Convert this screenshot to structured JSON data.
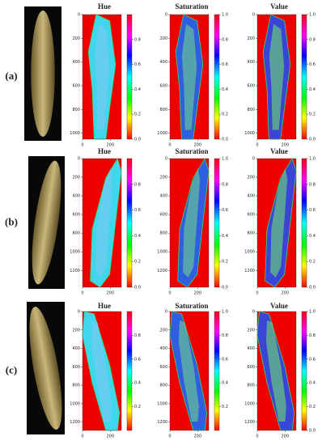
{
  "rows": [
    {
      "label": "(a)",
      "ylim": [
        0,
        1050
      ],
      "xlim": [
        0,
        280
      ],
      "yticks": [
        0,
        200,
        400,
        600,
        800,
        1000
      ],
      "xticks": [
        0,
        200
      ],
      "panels": [
        {
          "title": "Hue",
          "cbar_ticks": [
            0.0,
            0.2,
            0.4,
            0.6,
            0.8
          ]
        },
        {
          "title": "Saturation",
          "cbar_ticks": [
            0.0,
            0.2,
            0.4,
            0.6,
            0.8,
            1.0
          ]
        },
        {
          "title": "Value",
          "cbar_ticks": [
            0.0,
            0.2,
            0.4,
            0.6,
            0.8,
            1.0
          ]
        }
      ]
    },
    {
      "label": "(b)",
      "ylim": [
        0,
        1380
      ],
      "xlim": [
        0,
        280
      ],
      "yticks": [
        0,
        200,
        400,
        600,
        800,
        1000,
        1200
      ],
      "xticks": [
        0,
        200
      ],
      "panels": [
        {
          "title": "Hue",
          "cbar_ticks": [
            0.0,
            0.2,
            0.4,
            0.6,
            0.8
          ]
        },
        {
          "title": "Saturation",
          "cbar_ticks": [
            0.0,
            0.2,
            0.4,
            0.6,
            0.8,
            1.0
          ]
        },
        {
          "title": "Value",
          "cbar_ticks": [
            0.0,
            0.2,
            0.4,
            0.6,
            0.8,
            1.0
          ]
        }
      ]
    },
    {
      "label": "(c)",
      "ylim": [
        0,
        1290
      ],
      "xlim": [
        0,
        280
      ],
      "yticks": [
        0,
        200,
        400,
        600,
        800,
        1000,
        1200
      ],
      "xticks": [
        0,
        200
      ],
      "panels": [
        {
          "title": "Hue",
          "cbar_ticks": [
            0.2,
            0.4,
            0.6,
            0.8
          ]
        },
        {
          "title": "Saturation",
          "cbar_ticks": [
            0.2,
            0.4,
            0.6,
            0.8,
            1.0
          ]
        },
        {
          "title": "Value",
          "cbar_ticks": [
            0.0,
            0.2,
            0.4,
            0.6,
            0.8,
            1.0
          ]
        }
      ]
    }
  ],
  "cbar_lim": [
    0,
    1
  ]
}
